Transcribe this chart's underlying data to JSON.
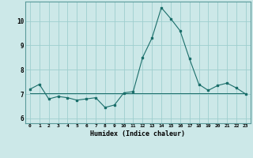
{
  "title": "",
  "xlabel": "Humidex (Indice chaleur)",
  "ylabel": "",
  "background_color": "#cce8e8",
  "grid_color": "#9ecece",
  "line_color": "#1a6e6a",
  "x_values": [
    0,
    1,
    2,
    3,
    4,
    5,
    6,
    7,
    8,
    9,
    10,
    11,
    12,
    13,
    14,
    15,
    16,
    17,
    18,
    19,
    20,
    21,
    22,
    23
  ],
  "main_line": [
    7.2,
    7.4,
    6.8,
    6.9,
    6.85,
    6.75,
    6.8,
    6.85,
    6.45,
    6.55,
    7.05,
    7.1,
    8.5,
    9.3,
    10.55,
    10.1,
    9.6,
    8.45,
    7.4,
    7.15,
    7.35,
    7.45,
    7.25,
    7.0
  ],
  "flat_line": [
    7.05,
    7.05,
    7.05,
    7.05,
    7.05,
    7.05,
    7.05,
    7.05,
    7.05,
    7.05,
    7.05,
    7.05,
    7.05,
    7.05,
    7.05,
    7.05,
    7.05,
    7.05,
    7.05,
    7.05,
    7.05,
    7.05,
    7.05,
    7.05
  ],
  "ylim": [
    5.8,
    10.8
  ],
  "yticks": [
    6,
    7,
    8,
    9,
    10
  ],
  "xticks": [
    0,
    1,
    2,
    3,
    4,
    5,
    6,
    7,
    8,
    9,
    10,
    11,
    12,
    13,
    14,
    15,
    16,
    17,
    18,
    19,
    20,
    21,
    22,
    23
  ]
}
